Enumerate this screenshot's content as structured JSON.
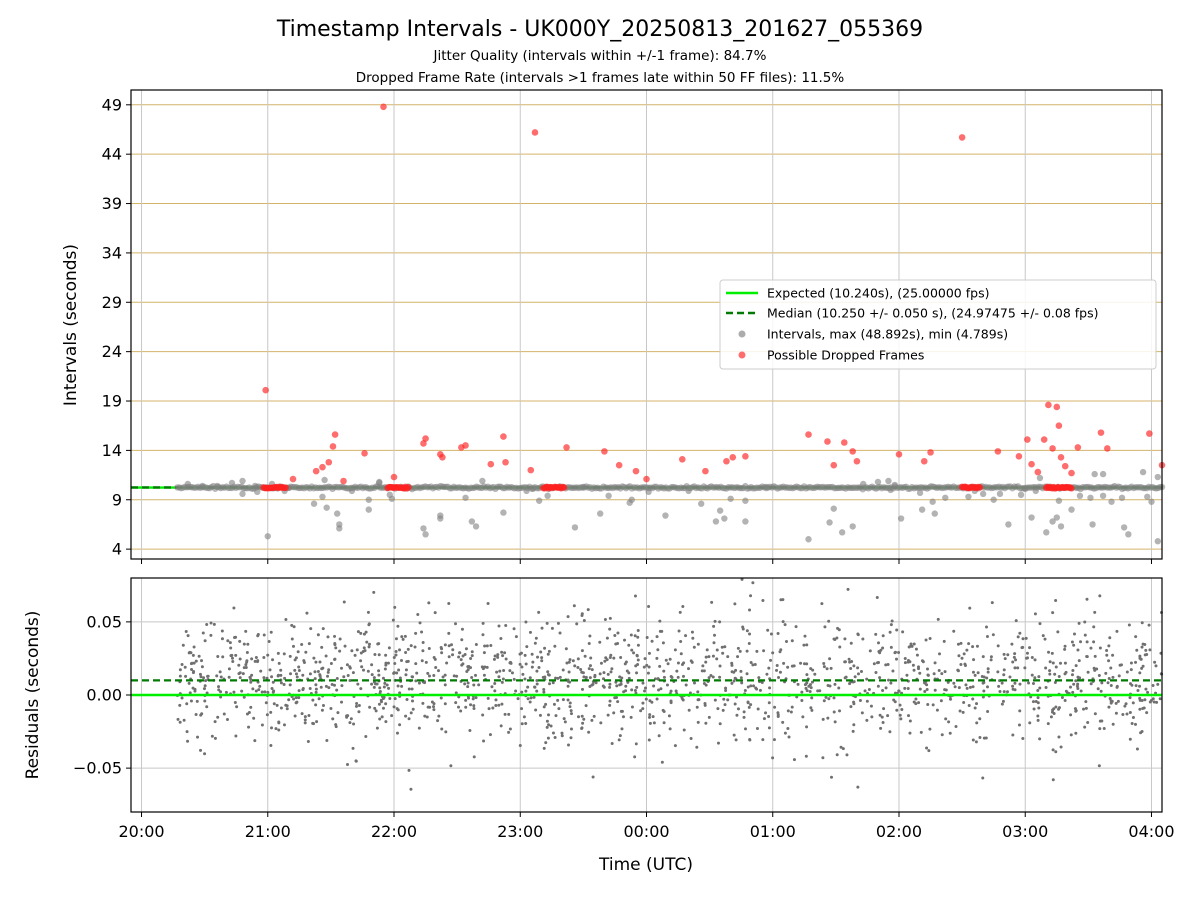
{
  "chart_data": [
    {
      "type": "scatter",
      "title": "Timestamp Intervals - UK000Y_20250813_201627_055369",
      "subtitle_lines": [
        "Jitter Quality (intervals within +/-1 frame): 84.7%",
        "Dropped Frame Rate (intervals >1 frames late within 50 FF files): 11.5%"
      ],
      "xlabel": "",
      "ylabel": "Intervals (seconds)",
      "xlim": [
        "19:55",
        "04:05"
      ],
      "ylim": [
        3,
        50.5
      ],
      "yticks": [
        4,
        9,
        14,
        19,
        24,
        29,
        34,
        39,
        44,
        49
      ],
      "grid": {
        "y": true,
        "x": true,
        "y_color": "#d4b36a"
      },
      "legend_position": "center-right",
      "legend": [
        {
          "label": "Expected (10.240s), (25.00000 fps)",
          "style": "solid-line",
          "color": "#00ee00"
        },
        {
          "label": "Median (10.250 +/- 0.050 s), (24.97475 +/- 0.08 fps)",
          "style": "dashed-line",
          "color": "#007a00"
        },
        {
          "label": "Intervals, max (48.892s), min (4.789s)",
          "style": "dot",
          "color": "#808080"
        },
        {
          "label": "Possible Dropped Frames",
          "style": "dot",
          "color": "#ff2020"
        }
      ],
      "reference_lines": {
        "expected": 10.24,
        "median": 10.25
      },
      "dense_band": {
        "x_start": "20:17",
        "x_end": "04:05",
        "y": 10.24
      },
      "red_clusters": [
        {
          "x_start": "20:58",
          "x_end": "21:09",
          "y": 10.24
        },
        {
          "x_start": "21:57",
          "x_end": "22:07",
          "y": 10.24
        },
        {
          "x_start": "23:11",
          "x_end": "23:21",
          "y": 10.24
        },
        {
          "x_start": "02:30",
          "x_end": "02:39",
          "y": 10.24
        },
        {
          "x_start": "03:10",
          "x_end": "03:22",
          "y": 10.24
        }
      ],
      "series": [
        {
          "name": "Intervals, max (48.892s), min (4.789s)",
          "color": "#808080",
          "points": [
            [
              "20:22",
              10.6
            ],
            [
              "20:29",
              10.4
            ],
            [
              "20:36",
              10.4
            ],
            [
              "20:43",
              10.7
            ],
            [
              "20:48",
              10.9
            ],
            [
              "20:48",
              9.6
            ],
            [
              "20:54",
              10.4
            ],
            [
              "20:55",
              9.8
            ],
            [
              "21:00",
              5.3
            ],
            [
              "21:02",
              10.6
            ],
            [
              "21:08",
              9.9
            ],
            [
              "21:10",
              10.2
            ],
            [
              "21:22",
              8.6
            ],
            [
              "21:26",
              9.3
            ],
            [
              "21:27",
              11.0
            ],
            [
              "21:28",
              8.2
            ],
            [
              "21:33",
              7.6
            ],
            [
              "21:34",
              6.5
            ],
            [
              "21:34",
              6.1
            ],
            [
              "21:40",
              9.9
            ],
            [
              "21:48",
              9.0
            ],
            [
              "21:48",
              8.0
            ],
            [
              "21:53",
              10.7
            ],
            [
              "21:53",
              10.8
            ],
            [
              "21:58",
              9.5
            ],
            [
              "21:59",
              9.1
            ],
            [
              "22:14",
              6.1
            ],
            [
              "22:15",
              5.5
            ],
            [
              "22:22",
              7.4
            ],
            [
              "22:22",
              7.1
            ],
            [
              "22:34",
              9.2
            ],
            [
              "22:37",
              6.8
            ],
            [
              "22:39",
              6.3
            ],
            [
              "22:42",
              10.9
            ],
            [
              "22:52",
              7.7
            ],
            [
              "23:03",
              9.9
            ],
            [
              "23:06",
              10.1
            ],
            [
              "23:09",
              8.9
            ],
            [
              "23:13",
              9.4
            ],
            [
              "23:26",
              6.2
            ],
            [
              "23:30",
              10.3
            ],
            [
              "23:38",
              7.6
            ],
            [
              "23:42",
              9.4
            ],
            [
              "23:52",
              8.7
            ],
            [
              "23:53",
              9.0
            ],
            [
              "00:01",
              9.8
            ],
            [
              "00:09",
              7.4
            ],
            [
              "00:20",
              9.9
            ],
            [
              "00:26",
              8.6
            ],
            [
              "00:33",
              6.8
            ],
            [
              "00:35",
              7.9
            ],
            [
              "00:37",
              7.1
            ],
            [
              "00:40",
              9.1
            ],
            [
              "00:47",
              8.9
            ],
            [
              "00:47",
              6.8
            ],
            [
              "00:57",
              10.3
            ],
            [
              "01:17",
              5.0
            ],
            [
              "01:27",
              6.7
            ],
            [
              "01:29",
              8.1
            ],
            [
              "01:33",
              5.7
            ],
            [
              "01:38",
              6.3
            ],
            [
              "01:43",
              10.6
            ],
            [
              "01:50",
              10.8
            ],
            [
              "01:55",
              10.9
            ],
            [
              "01:56",
              10.0
            ],
            [
              "01:58",
              10.5
            ],
            [
              "02:01",
              7.1
            ],
            [
              "02:10",
              9.7
            ],
            [
              "02:11",
              8.0
            ],
            [
              "02:16",
              8.8
            ],
            [
              "02:17",
              7.6
            ],
            [
              "02:22",
              9.2
            ],
            [
              "02:33",
              9.3
            ],
            [
              "02:36",
              9.9
            ],
            [
              "02:40",
              9.6
            ],
            [
              "02:45",
              9.0
            ],
            [
              "02:48",
              9.6
            ],
            [
              "02:52",
              6.5
            ],
            [
              "02:58",
              9.5
            ],
            [
              "03:00",
              10.1
            ],
            [
              "03:03",
              7.2
            ],
            [
              "03:05",
              9.9
            ],
            [
              "03:07",
              11.2
            ],
            [
              "03:10",
              5.7
            ],
            [
              "03:13",
              6.8
            ],
            [
              "03:15",
              7.2
            ],
            [
              "03:16",
              8.9
            ],
            [
              "03:17",
              6.3
            ],
            [
              "03:22",
              8.0
            ],
            [
              "03:26",
              9.4
            ],
            [
              "03:31",
              9.2
            ],
            [
              "03:32",
              6.5
            ],
            [
              "03:33",
              11.6
            ],
            [
              "03:37",
              9.4
            ],
            [
              "03:37",
              11.6
            ],
            [
              "03:41",
              8.8
            ],
            [
              "03:46",
              9.2
            ],
            [
              "03:47",
              6.2
            ],
            [
              "03:49",
              5.5
            ],
            [
              "03:56",
              11.8
            ],
            [
              "03:58",
              9.3
            ],
            [
              "04:00",
              8.8
            ],
            [
              "04:03",
              11.3
            ],
            [
              "04:03",
              4.8
            ]
          ]
        },
        {
          "name": "Possible Dropped Frames",
          "color": "#ff2020",
          "points": [
            [
              "20:59",
              20.1
            ],
            [
              "21:12",
              11.1
            ],
            [
              "21:23",
              11.9
            ],
            [
              "21:26",
              12.3
            ],
            [
              "21:29",
              12.8
            ],
            [
              "21:31",
              14.4
            ],
            [
              "21:32",
              15.6
            ],
            [
              "21:36",
              10.9
            ],
            [
              "21:46",
              13.7
            ],
            [
              "21:55",
              48.8
            ],
            [
              "22:00",
              11.3
            ],
            [
              "22:14",
              14.7
            ],
            [
              "22:15",
              15.2
            ],
            [
              "22:22",
              13.6
            ],
            [
              "22:23",
              13.3
            ],
            [
              "22:32",
              14.3
            ],
            [
              "22:34",
              14.5
            ],
            [
              "22:46",
              12.6
            ],
            [
              "22:52",
              15.4
            ],
            [
              "22:53",
              12.8
            ],
            [
              "23:05",
              12.0
            ],
            [
              "23:07",
              46.2
            ],
            [
              "23:22",
              14.3
            ],
            [
              "23:40",
              13.9
            ],
            [
              "23:47",
              12.5
            ],
            [
              "23:55",
              11.9
            ],
            [
              "00:00",
              11.1
            ],
            [
              "00:17",
              13.1
            ],
            [
              "00:28",
              11.9
            ],
            [
              "00:38",
              12.9
            ],
            [
              "00:41",
              13.3
            ],
            [
              "00:47",
              13.4
            ],
            [
              "01:17",
              15.6
            ],
            [
              "01:26",
              14.9
            ],
            [
              "01:29",
              12.5
            ],
            [
              "01:34",
              14.8
            ],
            [
              "01:38",
              13.9
            ],
            [
              "01:40",
              12.9
            ],
            [
              "02:00",
              13.6
            ],
            [
              "02:12",
              12.9
            ],
            [
              "02:15",
              13.8
            ],
            [
              "02:30",
              45.7
            ],
            [
              "02:47",
              13.9
            ],
            [
              "02:57",
              13.4
            ],
            [
              "03:01",
              15.1
            ],
            [
              "03:03",
              12.6
            ],
            [
              "03:06",
              11.8
            ],
            [
              "03:09",
              15.1
            ],
            [
              "03:11",
              18.6
            ],
            [
              "03:13",
              14.2
            ],
            [
              "03:15",
              18.4
            ],
            [
              "03:16",
              16.5
            ],
            [
              "03:17",
              13.3
            ],
            [
              "03:19",
              12.4
            ],
            [
              "03:22",
              11.7
            ],
            [
              "03:25",
              14.3
            ],
            [
              "03:36",
              15.8
            ],
            [
              "03:39",
              14.2
            ],
            [
              "03:59",
              15.7
            ],
            [
              "04:05",
              12.5
            ]
          ]
        }
      ]
    },
    {
      "type": "scatter",
      "xlabel": "Time (UTC)",
      "ylabel": "Residuals (seconds)",
      "xlim": [
        "19:55",
        "04:05"
      ],
      "ylim": [
        -0.08,
        0.08
      ],
      "yticks": [
        0.05,
        0.0,
        -0.05
      ],
      "ytick_labels": [
        "0.05",
        "0.00",
        "−0.05"
      ],
      "xticks": [
        "20:00",
        "21:00",
        "22:00",
        "23:00",
        "00:00",
        "01:00",
        "02:00",
        "03:00",
        "04:00"
      ],
      "grid": {
        "x": true,
        "y": true
      },
      "reference_lines": {
        "expected": 0.0,
        "median": 0.01
      },
      "cloud": {
        "x_start": "20:17",
        "x_end": "04:05",
        "center": 0.01,
        "spread": 0.022,
        "point_count": 1700,
        "color": "#707070"
      }
    }
  ]
}
